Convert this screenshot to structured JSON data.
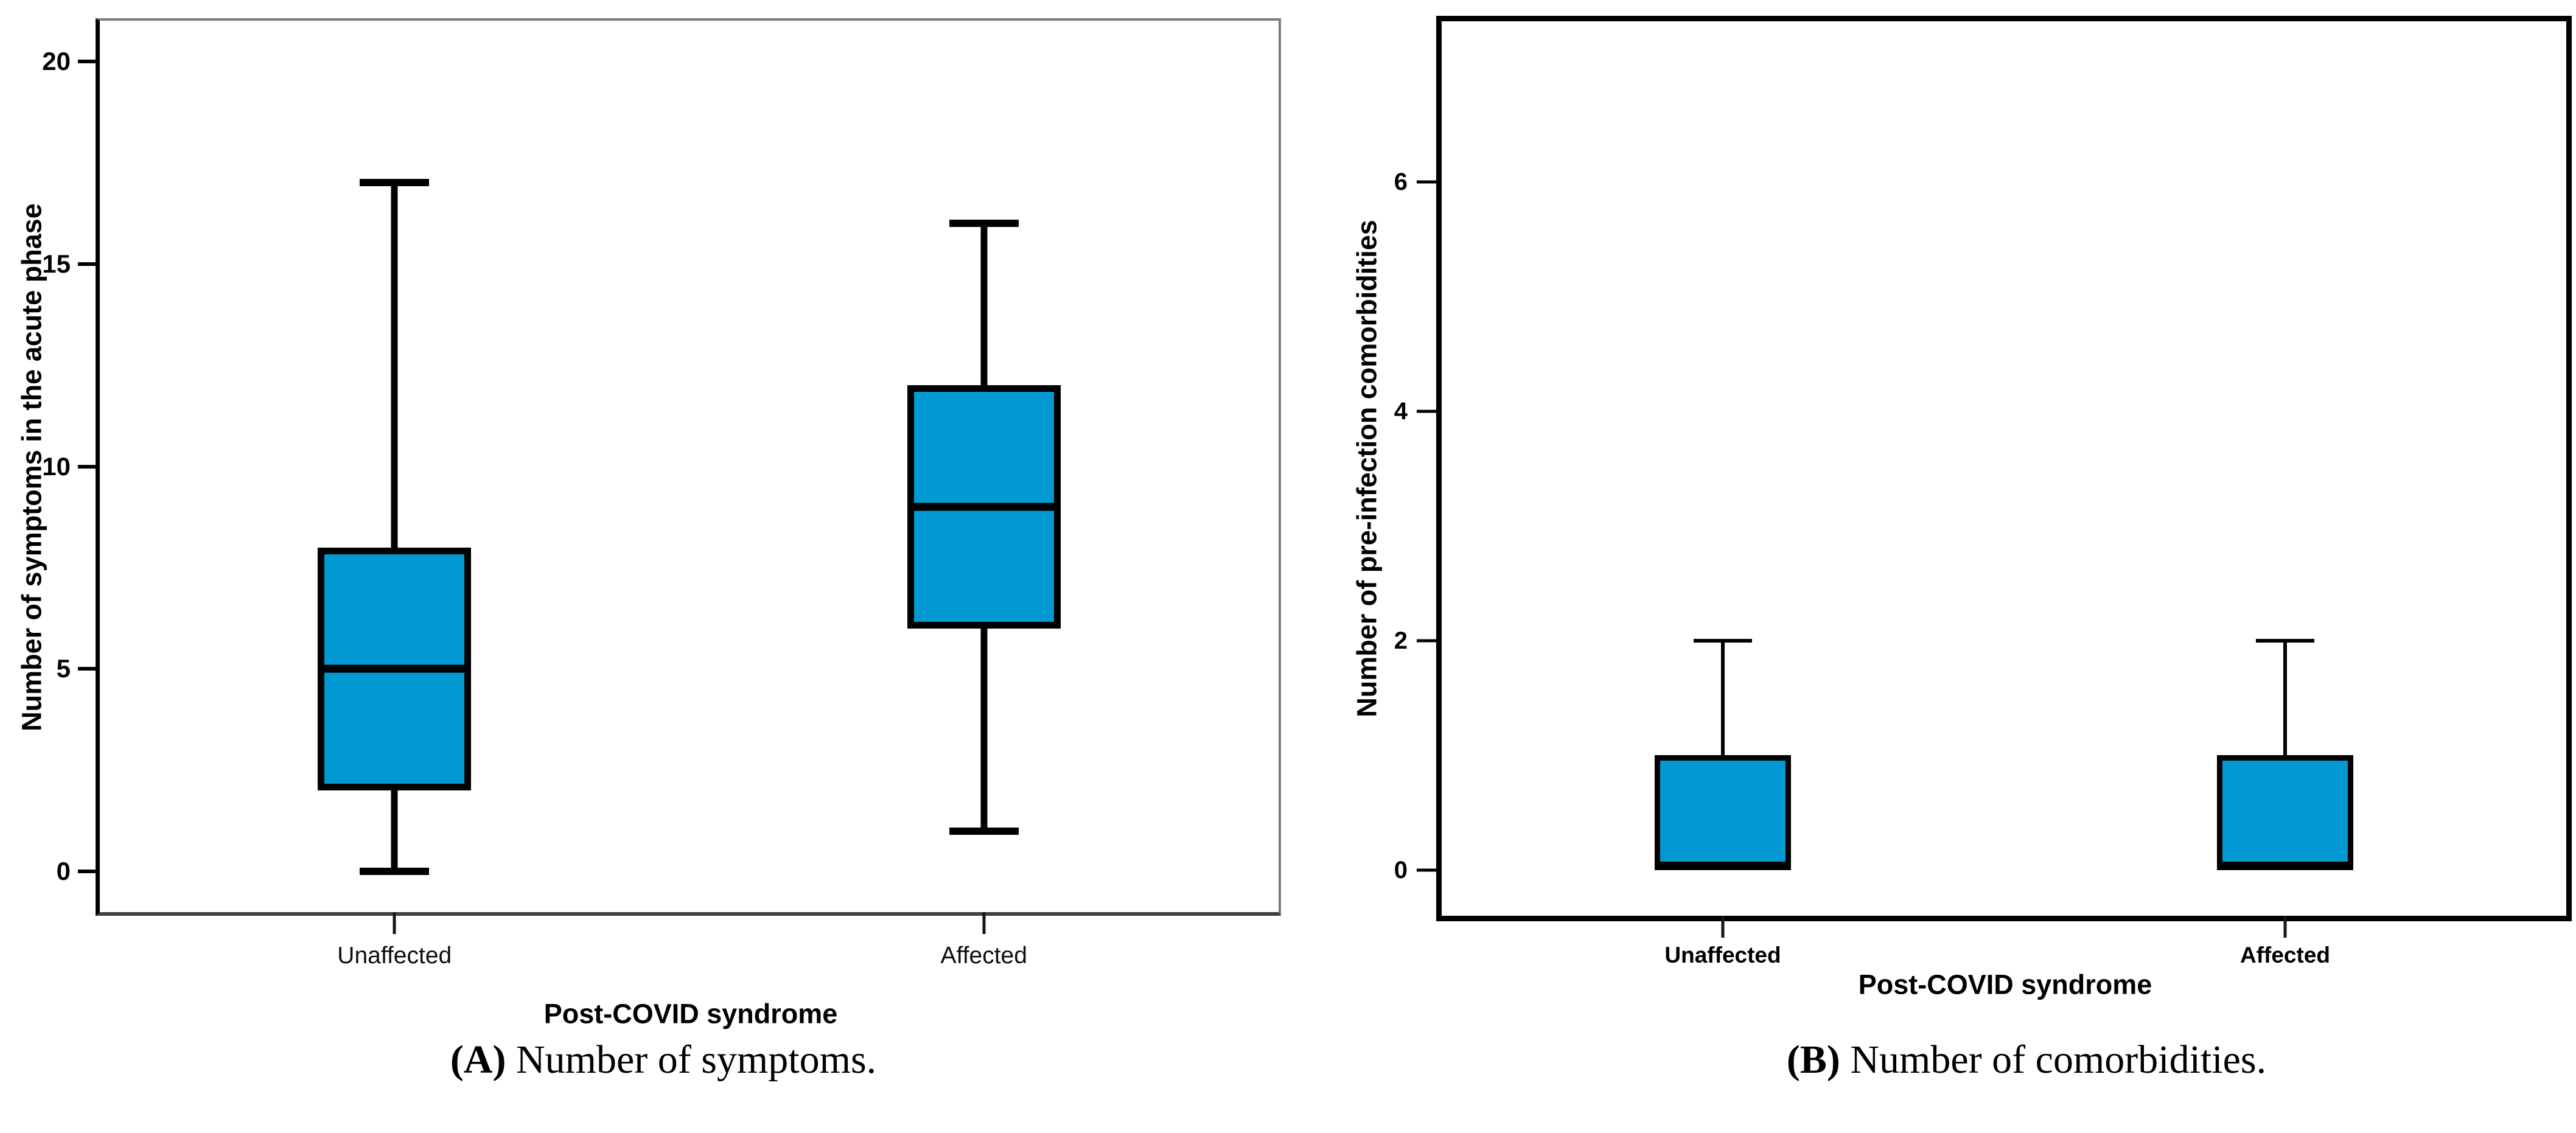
{
  "captions": [
    {
      "label": "(A)",
      "text": " Number of symptoms."
    },
    {
      "label": "(B)",
      "text": " Number of comorbidities."
    }
  ],
  "box_fill_color": "#0099d1",
  "chart_data": [
    {
      "type": "box",
      "panel": "A",
      "ylabel": "Number of symptoms in the acute phase",
      "xlabel": "Post-COVID syndrome",
      "categories": [
        "Unaffected",
        "Affected"
      ],
      "yticks": [
        0,
        5,
        10,
        15,
        20
      ],
      "ylim": [
        -1,
        21
      ],
      "grid": false,
      "series": [
        {
          "category": "Unaffected",
          "min": 0,
          "q1": 2,
          "median": 5,
          "q3": 8,
          "max": 17
        },
        {
          "category": "Affected",
          "min": 1,
          "q1": 6,
          "median": 9,
          "q3": 12,
          "max": 16
        }
      ],
      "box_color": "#0099d1"
    },
    {
      "type": "box",
      "panel": "B",
      "ylabel": "Number of pre-infection comorbidities",
      "xlabel": "Post-COVID syndrome",
      "categories": [
        "Unaffected",
        "Affected"
      ],
      "yticks": [
        0,
        2,
        4,
        6
      ],
      "ylim": [
        -0.4,
        7.4
      ],
      "grid": false,
      "series": [
        {
          "category": "Unaffected",
          "min": 0,
          "q1": 0,
          "median": 0,
          "q3": 1,
          "max": 2
        },
        {
          "category": "Affected",
          "min": 0,
          "q1": 0,
          "median": 0,
          "q3": 1,
          "max": 2
        }
      ],
      "box_color": "#0099d1"
    }
  ]
}
